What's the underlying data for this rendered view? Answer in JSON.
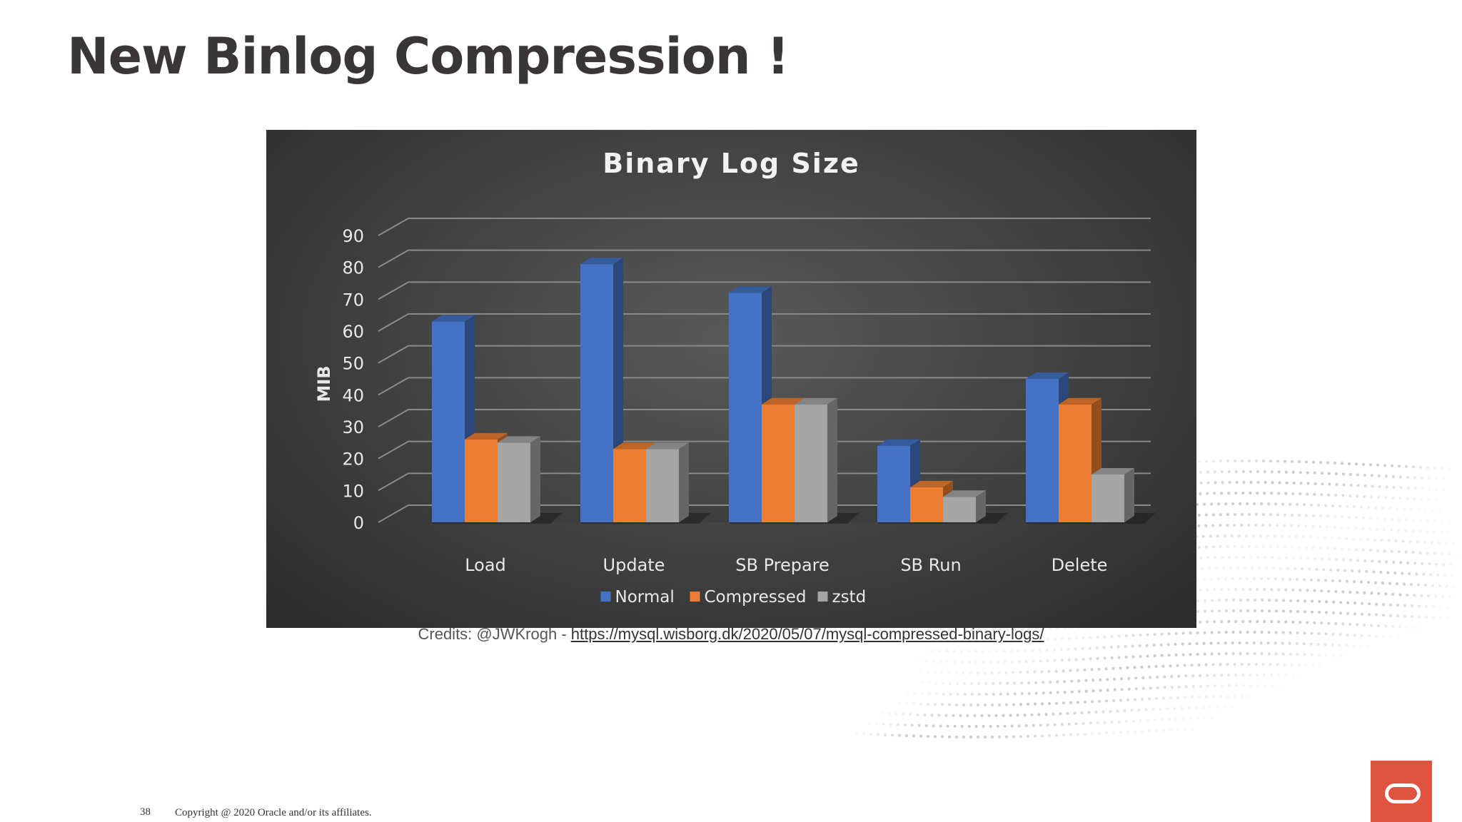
{
  "slide": {
    "title": "New Binlog Compression !",
    "page_number": "38",
    "copyright": "Copyright @ 2020 Oracle and/or its affiliates."
  },
  "credits": {
    "prefix": "Credits: @JWKrogh - ",
    "link_text": "https://mysql.wisborg.dk/2020/05/07/mysql-compressed-binary-logs/"
  },
  "chart_data": {
    "type": "bar",
    "title": "Binary Log Size",
    "xlabel": "",
    "ylabel": "MIB",
    "ylim": [
      0,
      90
    ],
    "yticks": [
      0,
      10,
      20,
      30,
      40,
      50,
      60,
      70,
      80,
      90
    ],
    "grid": true,
    "legend_position": "bottom",
    "categories": [
      "Load",
      "Update",
      "SB Prepare",
      "SB Run",
      "Delete"
    ],
    "series": [
      {
        "name": "Normal",
        "color": "#4472c4",
        "values": [
          63,
          81,
          72,
          24,
          45
        ]
      },
      {
        "name": "Compressed",
        "color": "#ed7d31",
        "values": [
          26,
          23,
          37,
          11,
          37
        ]
      },
      {
        "name": "zstd",
        "color": "#a5a5a5",
        "values": [
          25,
          23,
          37,
          8,
          15
        ]
      }
    ]
  }
}
